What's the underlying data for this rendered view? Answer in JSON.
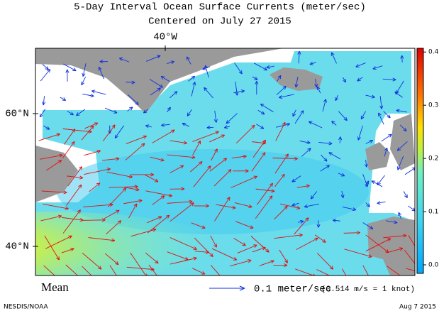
{
  "title": "5-Day Interval Ocean Surface Currents (meter/sec)",
  "subtitle": "Centered on July 27 2015",
  "lon_labels": [
    "40°W"
  ],
  "lat_labels": [
    "60°N",
    "40°N"
  ],
  "colorbar": {
    "lim": [
      -0.016,
      0.407
    ],
    "ticks": [
      {
        "value": 0,
        "label": "0.0"
      },
      {
        "value": 0.1,
        "label": "0.1"
      },
      {
        "value": 0.2,
        "label": "0.2"
      },
      {
        "value": 0.3,
        "label": "0.3"
      },
      {
        "value": 0.4,
        "label": "0.4"
      }
    ]
  },
  "legend": {
    "mean": "Mean",
    "reference": "0.1 meter/sec",
    "note": "(0.514 m/s = 1 knot)"
  },
  "credit": "NESDIS/NOAA",
  "date": "Aug  7 2015"
}
